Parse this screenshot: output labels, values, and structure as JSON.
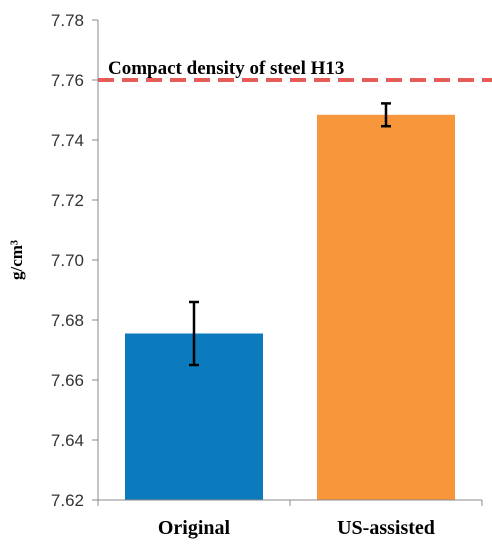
{
  "chart_data": {
    "type": "bar",
    "categories": [
      "Original",
      "US-assisted"
    ],
    "values": [
      7.6755,
      7.7484
    ],
    "errors": [
      0.0105,
      0.0038
    ],
    "colors": [
      "#0b7bbd",
      "#f7963a"
    ],
    "ylabel": "g/cm³",
    "ylim": [
      7.62,
      7.78
    ],
    "yticks": [
      "7.62",
      "7.64",
      "7.66",
      "7.68",
      "7.70",
      "7.72",
      "7.74",
      "7.76",
      "7.78"
    ],
    "grid": false,
    "reference_line": {
      "label": "Compact density of steel H13",
      "value": 7.76,
      "color": "#e85a57"
    }
  }
}
